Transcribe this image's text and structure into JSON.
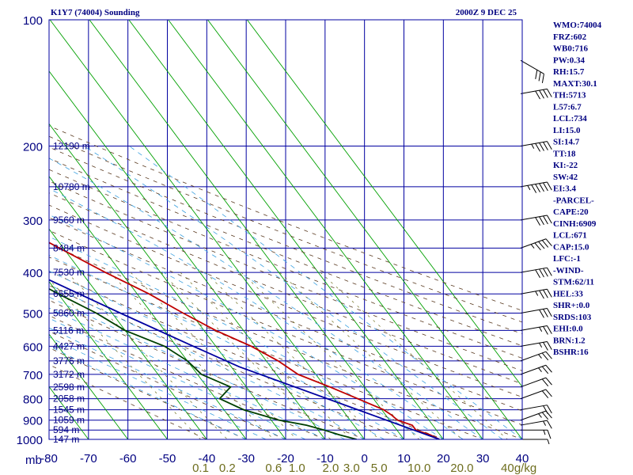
{
  "chart_data": {
    "type": "skew-t",
    "title": "K1Y7 (74004) Sounding",
    "time": "2000Z  9 DEC 25",
    "pressure_axis": {
      "unit_label": "mb",
      "ticks": [
        100,
        200,
        300,
        400,
        500,
        600,
        700,
        800,
        900,
        1000
      ],
      "labels": [
        "100",
        "200",
        "300",
        "400",
        "500",
        "600",
        "700",
        "800",
        "900",
        "1000"
      ],
      "range": [
        100,
        1000
      ]
    },
    "temperature_axis": {
      "ticks": [
        -80,
        -70,
        -60,
        -50,
        -40,
        -30,
        -20,
        -10,
        0,
        10,
        20,
        30,
        40
      ],
      "labels": [
        "-80",
        "-70",
        "-60",
        "-50",
        "-40",
        "-30",
        "-20",
        "-10",
        "0",
        "10",
        "20",
        "30",
        "40"
      ],
      "range": [
        -80,
        40
      ]
    },
    "mixing_ratio_axis": {
      "values": [
        0.1,
        0.2,
        0.6,
        1.0,
        2.0,
        3.0,
        5.0,
        10.0,
        20.0,
        40.0
      ],
      "labels": [
        "0.1",
        "0.2",
        "0.6",
        "1.0",
        "2.0",
        "3.0",
        "5.0",
        "10.0",
        "20.0",
        "40"
      ],
      "unit": "g/kg"
    },
    "height_labels": [
      {
        "p": 200,
        "text": "12190 m"
      },
      {
        "p": 250,
        "text": "10780 m"
      },
      {
        "p": 300,
        "text": "9560 m"
      },
      {
        "p": 350,
        "text": "8484 m"
      },
      {
        "p": 400,
        "text": "7530 m"
      },
      {
        "p": 450,
        "text": "6655 m"
      },
      {
        "p": 500,
        "text": "5860 m"
      },
      {
        "p": 550,
        "text": "5116 m"
      },
      {
        "p": 600,
        "text": "4427 m"
      },
      {
        "p": 650,
        "text": "3776 m"
      },
      {
        "p": 700,
        "text": "3172 m"
      },
      {
        "p": 750,
        "text": "2598 m"
      },
      {
        "p": 800,
        "text": "2058 m"
      },
      {
        "p": 850,
        "text": "1545 m"
      },
      {
        "p": 900,
        "text": "1059 m"
      },
      {
        "p": 950,
        "text": "594 m"
      },
      {
        "p": 1000,
        "text": "147 m"
      }
    ],
    "series": [
      {
        "name": "temperature",
        "color": "#c00000",
        "points": [
          [
            1000,
            19.0
          ],
          [
            975,
            17.5
          ],
          [
            950,
            14.8
          ],
          [
            925,
            14.8
          ],
          [
            900,
            12.0
          ],
          [
            875,
            11.5
          ],
          [
            850,
            10.5
          ],
          [
            800,
            6.0
          ],
          [
            750,
            1.2
          ],
          [
            700,
            -4.5
          ],
          [
            650,
            -7.0
          ],
          [
            600,
            -11.0
          ],
          [
            550,
            -17.0
          ],
          [
            500,
            -22.0
          ],
          [
            450,
            -27.0
          ],
          [
            400,
            -34.0
          ],
          [
            350,
            -41.0
          ],
          [
            300,
            -49.0
          ],
          [
            250,
            -56.0
          ],
          [
            200,
            -61.0
          ],
          [
            180,
            -59.5
          ],
          [
            170,
            -55.0
          ]
        ]
      },
      {
        "name": "dewpoint",
        "color": "#004000",
        "points": [
          [
            1000,
            -2.0
          ],
          [
            975,
            -5.5
          ],
          [
            950,
            -8.5
          ],
          [
            925,
            -12.0
          ],
          [
            900,
            -18.0
          ],
          [
            850,
            -25.0
          ],
          [
            800,
            -29.0
          ],
          [
            750,
            -24.0
          ],
          [
            700,
            -29.0
          ],
          [
            650,
            -30.0
          ],
          [
            600,
            -33.0
          ],
          [
            550,
            -40.0
          ],
          [
            500,
            -44.0
          ],
          [
            450,
            -50.0
          ],
          [
            400,
            -56.0
          ],
          [
            350,
            -58.0
          ],
          [
            300,
            -61.5
          ],
          [
            250,
            -62.5
          ],
          [
            220,
            -65.5
          ],
          [
            200,
            -68.0
          ],
          [
            190,
            -72.0
          ],
          [
            175,
            -74.5
          ],
          [
            165,
            -77.0
          ]
        ]
      },
      {
        "name": "parcel",
        "color": "#0000a0",
        "points": [
          [
            1000,
            19.0
          ],
          [
            671,
            -18.0
          ],
          [
            600,
            -25.7
          ],
          [
            500,
            -37.9
          ],
          [
            400,
            -52.3
          ],
          [
            300,
            -69.9
          ],
          [
            250,
            -80.0
          ]
        ]
      }
    ],
    "wind_barbs": [
      {
        "p": 1000,
        "dir": 270,
        "spd": 5
      },
      {
        "p": 950,
        "dir": 270,
        "spd": 15
      },
      {
        "p": 925,
        "dir": 260,
        "spd": 15
      },
      {
        "p": 900,
        "dir": 250,
        "spd": 25
      },
      {
        "p": 850,
        "dir": 260,
        "spd": 20
      },
      {
        "p": 800,
        "dir": 250,
        "spd": 20
      },
      {
        "p": 750,
        "dir": 250,
        "spd": 20
      },
      {
        "p": 700,
        "dir": 250,
        "spd": 25
      },
      {
        "p": 650,
        "dir": 250,
        "spd": 25
      },
      {
        "p": 600,
        "dir": 260,
        "spd": 25
      },
      {
        "p": 550,
        "dir": 260,
        "spd": 25
      },
      {
        "p": 500,
        "dir": 260,
        "spd": 30
      },
      {
        "p": 450,
        "dir": 260,
        "spd": 35
      },
      {
        "p": 400,
        "dir": 260,
        "spd": 40
      },
      {
        "p": 350,
        "dir": 250,
        "spd": 45
      },
      {
        "p": 300,
        "dir": 260,
        "spd": 40
      },
      {
        "p": 250,
        "dir": 260,
        "spd": 55
      },
      {
        "p": 200,
        "dir": 260,
        "spd": 45
      },
      {
        "p": 150,
        "dir": 260,
        "spd": 40
      },
      {
        "p": 125,
        "dir": 300,
        "spd": 30
      }
    ],
    "indices": [
      "WMO:74004",
      "FRZ:602",
      "WB0:716",
      "PW:0.34",
      "RH:15.7",
      "MAXT:30.1",
      "TH:5713",
      "L57:6.7",
      "LCL:734",
      "LI:15.0",
      "SI:14.7",
      "TT:18",
      "KI:-22",
      "SW:42",
      "EI:3.4",
      "-PARCEL-",
      "CAPE:20",
      "CINH:6909",
      "LCL:671",
      "CAP:15.0",
      "LFC:-1",
      "-WIND-",
      "STM:62/11",
      "HEL:33",
      "SHR+:0.0",
      "SRDS:103",
      "EHI:0.0",
      "BRN:1.2",
      "BSHR:16"
    ]
  }
}
